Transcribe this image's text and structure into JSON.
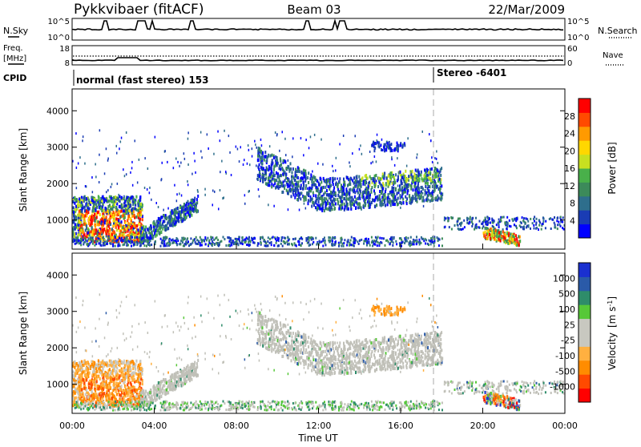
{
  "header": {
    "station": "Pykkvibaer (fitACF)",
    "beam": "Beam 03",
    "date": "22/Mar/2009"
  },
  "panels": {
    "nsky": {
      "label": "N.Sky",
      "top_tick": "10^5",
      "bottom_tick": "10^0",
      "right_top": "10^5",
      "right_bottom": "10^0",
      "right_label": "N.Search"
    },
    "freq": {
      "label_line1": "Freq.",
      "label_line2": "[MHz]",
      "top_tick": "18",
      "bottom_tick": "8",
      "right_top": "60",
      "right_bottom": "0",
      "right_label": "Nave"
    },
    "cpid": {
      "label": "CPID",
      "seg1": "normal (fast stereo) 153",
      "seg2": "Stereo -6401"
    }
  },
  "colors": {
    "power": [
      "#0000ff",
      "#1a3cb4",
      "#2e6e8c",
      "#3c8a5a",
      "#49b04a",
      "#c8e020",
      "#ffd700",
      "#ff9a00",
      "#ff4a00",
      "#ff0000"
    ],
    "velocity": [
      "#ff0000",
      "#ff4a00",
      "#ff8c00",
      "#ffb040",
      "#c8c8c0",
      "#c8c8c0",
      "#56c838",
      "#2e8c6a",
      "#2a5aa8",
      "#1a30d0"
    ],
    "ground_scatter": "#c0c0b8"
  },
  "chart_data": [
    {
      "type": "heatmap",
      "name": "power",
      "ylabel": "Slant Range [km]",
      "yticks": [
        "1000",
        "2000",
        "3000",
        "4000"
      ],
      "ylim": [
        200,
        4600
      ],
      "xlim": [
        0,
        24
      ],
      "colorbar_label": "Power [dB]",
      "colorbar_ticks": [
        "4",
        "8",
        "12",
        "16",
        "20",
        "24",
        "28"
      ]
    },
    {
      "type": "heatmap",
      "name": "velocity",
      "ylabel": "Slant Range [km]",
      "yticks": [
        "1000",
        "2000",
        "3000",
        "4000"
      ],
      "ylim": [
        200,
        4600
      ],
      "xlim": [
        0,
        24
      ],
      "xlabel": "Time UT",
      "xticks": [
        "00:00",
        "04:00",
        "08:00",
        "12:00",
        "16:00",
        "20:00",
        "00:00"
      ],
      "colorbar_label": "Velocity",
      "colorbar_unit": "[m s",
      "colorbar_unit_sup": "-1",
      "colorbar_unit_close": "]",
      "colorbar_ticks": [
        "1000",
        "500",
        "100",
        "25",
        "-25",
        "-100",
        "-500",
        "-1000"
      ]
    }
  ]
}
